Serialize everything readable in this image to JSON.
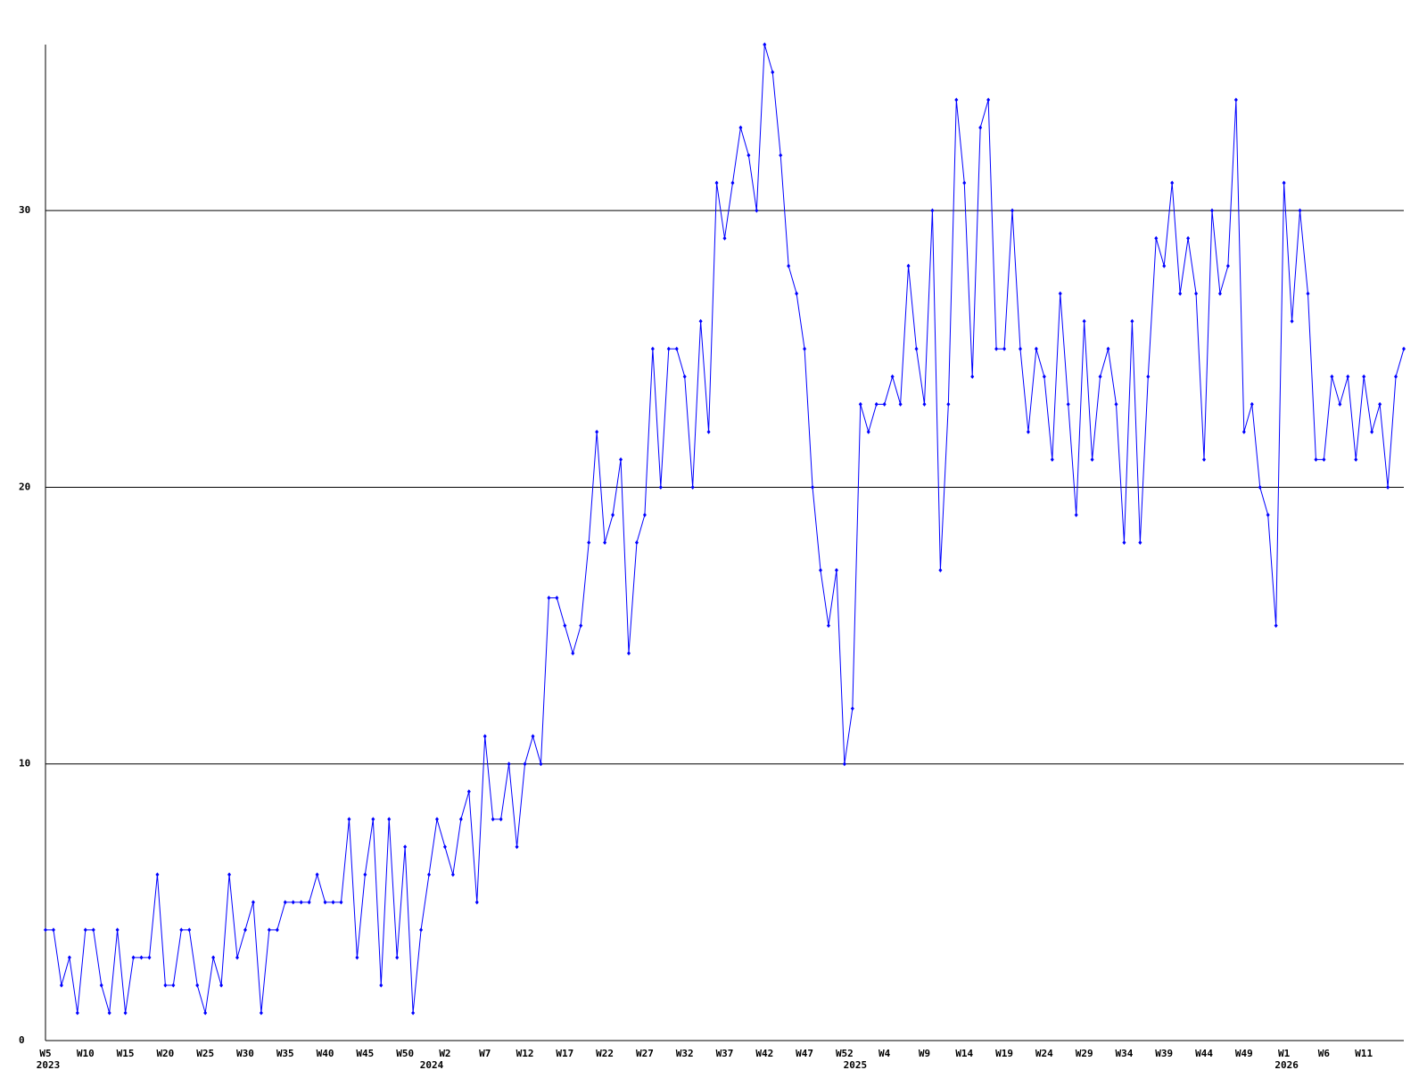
{
  "chart_data": {
    "type": "line",
    "categories": [
      "W5",
      null,
      null,
      null,
      null,
      "W10",
      null,
      null,
      null,
      null,
      "W15",
      null,
      null,
      null,
      null,
      "W20",
      null,
      null,
      null,
      null,
      "W25",
      null,
      null,
      null,
      null,
      "W30",
      null,
      null,
      null,
      null,
      "W35",
      null,
      null,
      null,
      null,
      "W40",
      null,
      null,
      null,
      null,
      "W45",
      null,
      null,
      null,
      null,
      "W50",
      null,
      null,
      null,
      null,
      "W2",
      null,
      null,
      null,
      null,
      "W7",
      null,
      null,
      null,
      null,
      "W12",
      null,
      null,
      null,
      null,
      "W17",
      null,
      null,
      null,
      null,
      "W22",
      null,
      null,
      null,
      null,
      "W27",
      null,
      null,
      null,
      null,
      "W32",
      null,
      null,
      null,
      null,
      "W37",
      null,
      null,
      null,
      null,
      "W42",
      null,
      null,
      null,
      null,
      "W47",
      null,
      null,
      null,
      null,
      "W52",
      null,
      null,
      null,
      null,
      "W4",
      null,
      null,
      null,
      null,
      "W9",
      null,
      null,
      null,
      null,
      "W14",
      null,
      null,
      null,
      null,
      "W19",
      null,
      null,
      null,
      null,
      "W24",
      null,
      null,
      null,
      null,
      "W29",
      null,
      null,
      null,
      null,
      "W34",
      null,
      null,
      null,
      null,
      "W39",
      null,
      null,
      null,
      null,
      "W44",
      null,
      null,
      null,
      null,
      "W49",
      null,
      null,
      null,
      null,
      "W1",
      null,
      null,
      null,
      null,
      "W6",
      null,
      null,
      null,
      null,
      "W11",
      null,
      null,
      null,
      null,
      null
    ],
    "year_categories": [
      "2023",
      null,
      null,
      null,
      null,
      null,
      null,
      null,
      null,
      null,
      null,
      null,
      null,
      null,
      null,
      null,
      null,
      null,
      null,
      null,
      null,
      null,
      null,
      null,
      null,
      null,
      null,
      null,
      null,
      null,
      null,
      null,
      null,
      null,
      null,
      null,
      null,
      null,
      null,
      null,
      null,
      null,
      null,
      null,
      null,
      null,
      null,
      null,
      "2024",
      null,
      null,
      null,
      null,
      null,
      null,
      null,
      null,
      null,
      null,
      null,
      null,
      null,
      null,
      null,
      null,
      null,
      null,
      null,
      null,
      null,
      null,
      null,
      null,
      null,
      null,
      null,
      null,
      null,
      null,
      null,
      null,
      null,
      null,
      null,
      null,
      null,
      null,
      null,
      null,
      null,
      null,
      null,
      null,
      null,
      null,
      null,
      null,
      null,
      null,
      null,
      null,
      "2025",
      null,
      null,
      null,
      null,
      null,
      null,
      null,
      null,
      null,
      null,
      null,
      null,
      null,
      null,
      null,
      null,
      null,
      null,
      null,
      null,
      null,
      null,
      null,
      null,
      null,
      null,
      null,
      null,
      null,
      null,
      null,
      null,
      null,
      null,
      null,
      null,
      null,
      null,
      null,
      null,
      null,
      null,
      null,
      null,
      null,
      null,
      null,
      null,
      null,
      null,
      null,
      null,
      null,
      "2026",
      null,
      null,
      null,
      null,
      null,
      null,
      null,
      null,
      null,
      null,
      null,
      null,
      null,
      null,
      null
    ],
    "values": [
      4,
      4,
      2,
      3,
      1,
      4,
      4,
      2,
      1,
      4,
      1,
      3,
      3,
      3,
      6,
      2,
      2,
      4,
      4,
      2,
      1,
      3,
      2,
      6,
      3,
      4,
      5,
      1,
      4,
      4,
      5,
      5,
      5,
      5,
      6,
      5,
      5,
      5,
      8,
      3,
      6,
      8,
      2,
      8,
      3,
      7,
      1,
      4,
      6,
      8,
      7,
      6,
      8,
      9,
      5,
      11,
      8,
      8,
      10,
      7,
      10,
      11,
      10,
      16,
      16,
      15,
      14,
      15,
      18,
      22,
      18,
      19,
      21,
      14,
      18,
      19,
      25,
      20,
      25,
      25,
      24,
      20,
      26,
      22,
      31,
      29,
      31,
      33,
      32,
      30,
      36,
      35,
      32,
      28,
      27,
      25,
      20,
      17,
      15,
      17,
      10,
      12,
      23,
      22,
      23,
      23,
      24,
      23,
      28,
      25,
      23,
      30,
      17,
      23,
      34,
      31,
      24,
      33,
      34,
      25,
      25,
      30,
      25,
      22,
      25,
      24,
      21,
      27,
      23,
      19,
      26,
      21,
      24,
      25,
      23,
      18,
      26,
      18,
      24,
      29,
      28,
      31,
      27,
      29,
      27,
      21,
      30,
      27,
      28,
      34,
      22,
      23,
      20,
      19,
      15,
      31,
      26,
      30,
      27,
      21,
      21,
      24,
      23,
      24,
      21,
      24,
      22,
      23,
      20,
      24,
      25
    ],
    "color": "#0000ff",
    "ylim": [
      0,
      36
    ],
    "yticks": [
      0,
      10,
      20,
      30
    ],
    "grid": true
  }
}
